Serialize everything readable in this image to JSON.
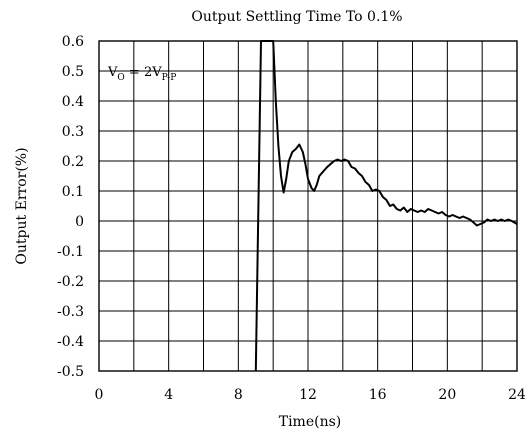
{
  "chart_data": {
    "type": "line",
    "title": "Output Settling Time To 0.1%",
    "xlabel": "Time(ns)",
    "ylabel": "Output Error(%)",
    "xlim": [
      0,
      24
    ],
    "ylim": [
      -0.5,
      0.6
    ],
    "x_ticks": [
      0,
      4,
      8,
      12,
      16,
      20,
      24
    ],
    "x_tick_labels": [
      "0",
      "4",
      "8",
      "12",
      "16",
      "20",
      "24"
    ],
    "y_ticks": [
      0.6,
      0.5,
      0.4,
      0.3,
      0.2,
      0.1,
      0,
      -0.1,
      -0.2,
      -0.3,
      -0.4,
      -0.5
    ],
    "y_tick_labels": [
      "0.6",
      "0.5",
      "0.4",
      "0.3",
      "0.2",
      "0.1",
      "0",
      "-0.1",
      "-0.2",
      "-0.3",
      "-0.4",
      "-0.5"
    ],
    "grid": true,
    "annotation": {
      "main": "V",
      "sub_o": "O",
      "eq": " = 2V",
      "sub_pp": "P-P"
    },
    "series": [
      {
        "values": [
          [
            9.0,
            -0.5
          ],
          [
            9.3,
            0.6
          ],
          [
            10.0,
            0.6
          ],
          [
            10.15,
            0.4
          ],
          [
            10.3,
            0.25
          ],
          [
            10.45,
            0.15
          ],
          [
            10.6,
            0.095
          ],
          [
            10.75,
            0.14
          ],
          [
            10.9,
            0.2
          ],
          [
            11.1,
            0.23
          ],
          [
            11.3,
            0.24
          ],
          [
            11.5,
            0.255
          ],
          [
            11.7,
            0.23
          ],
          [
            11.85,
            0.19
          ],
          [
            12.0,
            0.14
          ],
          [
            12.2,
            0.11
          ],
          [
            12.35,
            0.1
          ],
          [
            12.5,
            0.12
          ],
          [
            12.65,
            0.15
          ],
          [
            12.8,
            0.16
          ],
          [
            12.95,
            0.17
          ],
          [
            13.1,
            0.18
          ],
          [
            13.3,
            0.19
          ],
          [
            13.5,
            0.2
          ],
          [
            13.7,
            0.205
          ],
          [
            13.9,
            0.2
          ],
          [
            14.1,
            0.205
          ],
          [
            14.3,
            0.2
          ],
          [
            14.5,
            0.18
          ],
          [
            14.7,
            0.175
          ],
          [
            14.9,
            0.16
          ],
          [
            15.1,
            0.15
          ],
          [
            15.3,
            0.13
          ],
          [
            15.5,
            0.12
          ],
          [
            15.7,
            0.1
          ],
          [
            15.9,
            0.105
          ],
          [
            16.1,
            0.1
          ],
          [
            16.3,
            0.08
          ],
          [
            16.5,
            0.07
          ],
          [
            16.7,
            0.05
          ],
          [
            16.9,
            0.055
          ],
          [
            17.1,
            0.04
          ],
          [
            17.3,
            0.035
          ],
          [
            17.5,
            0.045
          ],
          [
            17.7,
            0.03
          ],
          [
            17.9,
            0.04
          ],
          [
            18.1,
            0.035
          ],
          [
            18.3,
            0.03
          ],
          [
            18.5,
            0.035
          ],
          [
            18.7,
            0.03
          ],
          [
            18.9,
            0.04
          ],
          [
            19.1,
            0.035
          ],
          [
            19.3,
            0.03
          ],
          [
            19.5,
            0.025
          ],
          [
            19.7,
            0.03
          ],
          [
            19.9,
            0.02
          ],
          [
            20.1,
            0.015
          ],
          [
            20.3,
            0.02
          ],
          [
            20.5,
            0.015
          ],
          [
            20.7,
            0.01
          ],
          [
            20.9,
            0.015
          ],
          [
            21.1,
            0.01
          ],
          [
            21.3,
            0.005
          ],
          [
            21.5,
            -0.005
          ],
          [
            21.7,
            -0.015
          ],
          [
            21.9,
            -0.01
          ],
          [
            22.1,
            -0.005
          ],
          [
            22.3,
            0.005
          ],
          [
            22.5,
            0.0
          ],
          [
            22.7,
            0.005
          ],
          [
            22.9,
            0.0
          ],
          [
            23.1,
            0.005
          ],
          [
            23.3,
            0.0
          ],
          [
            23.5,
            0.005
          ],
          [
            23.7,
            0.0
          ],
          [
            24.0,
            -0.01
          ]
        ]
      }
    ]
  }
}
